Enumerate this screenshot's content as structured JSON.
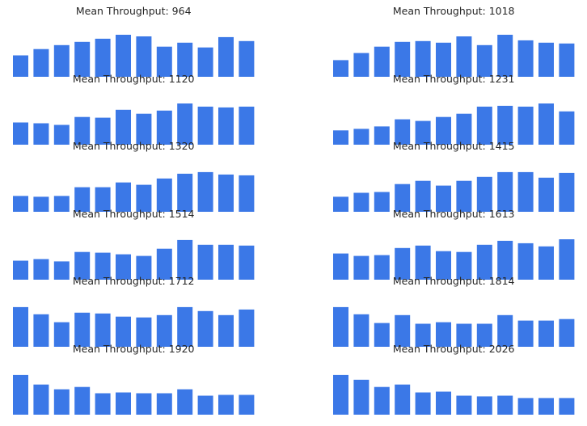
{
  "chart_data": {
    "type": "bar",
    "grid": false,
    "axes_visible": false,
    "bar_color": "#3b78e7",
    "bars_per_panel": 12,
    "panels": [
      {
        "title": "Mean Throughput: 964",
        "values": [
          27,
          35,
          40,
          44,
          48,
          53,
          51,
          38,
          43,
          37,
          50,
          45
        ]
      },
      {
        "title": "Mean Throughput: 1018",
        "values": [
          21,
          30,
          38,
          44,
          45,
          43,
          51,
          40,
          53,
          46,
          43,
          42
        ]
      },
      {
        "title": "Mean Throughput: 1120",
        "values": [
          28,
          27,
          25,
          35,
          34,
          44,
          39,
          43,
          52,
          48,
          47,
          48
        ]
      },
      {
        "title": "Mean Throughput: 1231",
        "values": [
          18,
          20,
          23,
          32,
          30,
          35,
          39,
          48,
          49,
          48,
          52,
          42
        ]
      },
      {
        "title": "Mean Throughput: 1320",
        "values": [
          20,
          19,
          20,
          31,
          31,
          37,
          34,
          42,
          48,
          50,
          47,
          46
        ]
      },
      {
        "title": "Mean Throughput: 1415",
        "values": [
          19,
          24,
          25,
          35,
          39,
          33,
          39,
          44,
          50,
          50,
          43,
          49
        ]
      },
      {
        "title": "Mean Throughput: 1514",
        "values": [
          24,
          26,
          23,
          35,
          34,
          32,
          30,
          39,
          50,
          44,
          44,
          43
        ]
      },
      {
        "title": "Mean Throughput: 1613",
        "values": [
          33,
          30,
          31,
          40,
          43,
          36,
          35,
          44,
          49,
          46,
          42,
          51
        ]
      },
      {
        "title": "Mean Throughput: 1712",
        "values": [
          50,
          41,
          31,
          43,
          42,
          38,
          37,
          40,
          50,
          45,
          40,
          47
        ]
      },
      {
        "title": "Mean Throughput: 1814",
        "values": [
          50,
          41,
          30,
          40,
          29,
          31,
          29,
          29,
          40,
          33,
          33,
          35
        ]
      },
      {
        "title": "Mean Throughput: 1920",
        "values": [
          50,
          38,
          32,
          35,
          27,
          28,
          27,
          27,
          32,
          24,
          25,
          25
        ]
      },
      {
        "title": "Mean Throughput: 2026",
        "values": [
          50,
          44,
          35,
          38,
          28,
          29,
          24,
          23,
          24,
          21,
          21,
          21
        ]
      }
    ]
  }
}
